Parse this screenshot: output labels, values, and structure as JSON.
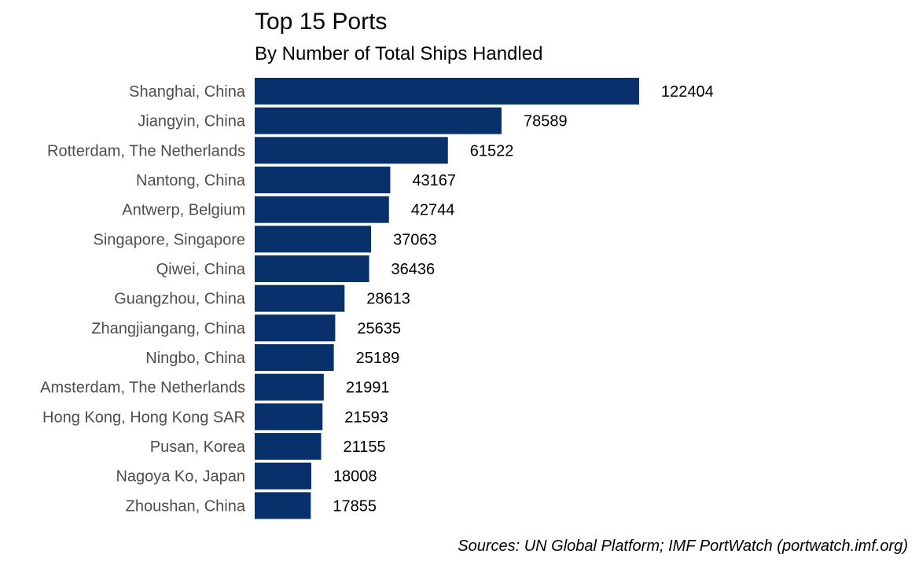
{
  "chart_data": {
    "type": "bar",
    "orientation": "horizontal",
    "title": "Top 15 Ports",
    "subtitle": "By Number of Total Ships Handled",
    "caption": "Sources: UN Global Platform; IMF PortWatch (portwatch.imf.org)",
    "xlabel": "",
    "ylabel": "",
    "grid": false,
    "legend": "none",
    "bar_color": "#08306b",
    "xlim": [
      0,
      122404
    ],
    "categories": [
      "Shanghai, China",
      "Jiangyin, China",
      "Rotterdam, The Netherlands",
      "Nantong, China",
      "Antwerp, Belgium",
      "Singapore, Singapore",
      "Qiwei, China",
      "Guangzhou, China",
      "Zhangjiangang, China",
      "Ningbo, China",
      "Amsterdam, The Netherlands",
      "Hong Kong, Hong Kong SAR",
      "Pusan, Korea",
      "Nagoya Ko, Japan",
      "Zhoushan, China"
    ],
    "values": [
      122404,
      78589,
      61522,
      43167,
      42744,
      37063,
      36436,
      28613,
      25635,
      25189,
      21991,
      21593,
      21155,
      18008,
      17855
    ]
  }
}
